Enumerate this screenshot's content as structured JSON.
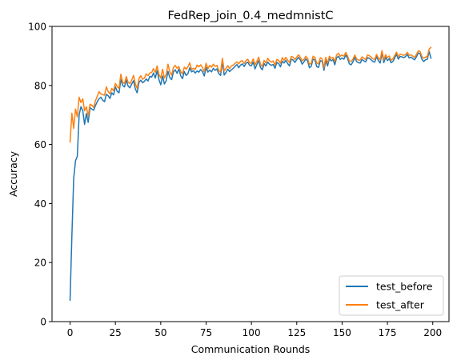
{
  "chart_data": {
    "type": "line",
    "title": "FedRep_join_0.4_medmnistC",
    "xlabel": "Communication Rounds",
    "ylabel": "Accuracy",
    "xlim": [
      -9.95,
      208.95
    ],
    "ylim": [
      0,
      100
    ],
    "xticks": [
      0,
      25,
      50,
      75,
      100,
      125,
      150,
      175,
      200
    ],
    "yticks": [
      0,
      20,
      40,
      60,
      80,
      100
    ],
    "grid": false,
    "legend_position": "lower right",
    "series": [
      {
        "name": "test_before",
        "color": "#1f77b4",
        "values": [
          7.2,
          29.0,
          48.5,
          54.5,
          56.0,
          70.0,
          72.8,
          71.5,
          66.8,
          70.5,
          67.5,
          72.5,
          72.0,
          71.6,
          73.2,
          74.5,
          75.5,
          76.0,
          75.0,
          74.5,
          77.0,
          76.5,
          75.6,
          77.5,
          76.8,
          79.5,
          78.0,
          77.5,
          82.0,
          80.0,
          79.5,
          81.8,
          79.8,
          79.2,
          80.5,
          81.6,
          78.8,
          77.5,
          81.0,
          81.8,
          80.9,
          81.4,
          82.2,
          81.5,
          83.1,
          82.8,
          84.2,
          82.5,
          85.0,
          82.0,
          80.2,
          83.2,
          80.5,
          81.6,
          84.8,
          82.6,
          82.0,
          84.6,
          85.3,
          84.1,
          85.6,
          83.3,
          82.3,
          84.7,
          83.4,
          84.0,
          86.0,
          84.6,
          85.0,
          84.2,
          84.9,
          84.5,
          85.4,
          84.7,
          83.2,
          86.1,
          84.5,
          85.2,
          84.6,
          85.8,
          85.1,
          85.6,
          84.0,
          83.4,
          88.0,
          83.5,
          84.4,
          85.5,
          84.7,
          85.3,
          85.8,
          86.5,
          87.1,
          86.0,
          86.9,
          87.3,
          86.4,
          87.5,
          87.9,
          86.8,
          86.7,
          87.9,
          85.6,
          87.1,
          88.4,
          86.1,
          85.3,
          87.4,
          86.6,
          87.9,
          87.2,
          86.8,
          87.1,
          85.8,
          87.8,
          87.4,
          86.3,
          88.2,
          87.6,
          88.5,
          87.4,
          86.6,
          88.9,
          88.6,
          87.8,
          88.8,
          89.5,
          88.6,
          87.2,
          88.0,
          89.0,
          88.2,
          86.0,
          86.5,
          89.0,
          88.6,
          86.4,
          86.1,
          88.4,
          88.2,
          85.1,
          88.4,
          86.6,
          89.1,
          88.3,
          88.8,
          87.0,
          89.4,
          89.9,
          88.8,
          89.3,
          88.9,
          90.3,
          89.2,
          87.3,
          87.0,
          88.0,
          89.5,
          88.1,
          87.7,
          87.6,
          88.8,
          88.3,
          88.0,
          89.4,
          89.2,
          88.7,
          88.1,
          87.9,
          89.8,
          88.4,
          87.6,
          91.1,
          87.7,
          89.6,
          88.4,
          89.1,
          87.7,
          88.1,
          89.3,
          90.6,
          88.9,
          89.8,
          89.7,
          89.4,
          89.8,
          90.5,
          89.3,
          89.6,
          89.1,
          88.7,
          89.7,
          91.0,
          90.8,
          88.9,
          88.1,
          88.7,
          88.9,
          91.5,
          89.2
        ]
      },
      {
        "name": "test_after",
        "color": "#ff7f0e",
        "values": [
          60.8,
          70.6,
          65.4,
          72.0,
          69.4,
          76.0,
          74.2,
          75.5,
          71.4,
          72.8,
          69.7,
          73.6,
          73.3,
          72.6,
          74.8,
          76.3,
          77.9,
          77.1,
          76.9,
          76.7,
          79.5,
          78.0,
          77.1,
          79.0,
          78.2,
          80.7,
          79.6,
          79.0,
          83.8,
          81.1,
          80.6,
          83.0,
          81.1,
          80.6,
          81.8,
          83.4,
          80.5,
          79.0,
          82.3,
          83.3,
          82.1,
          82.5,
          83.9,
          83.3,
          84.2,
          84.4,
          85.7,
          84.4,
          86.6,
          83.7,
          82.5,
          85.5,
          82.5,
          83.8,
          87.2,
          84.6,
          83.5,
          86.1,
          86.8,
          85.8,
          86.4,
          84.7,
          83.9,
          86.2,
          85.5,
          86.3,
          87.7,
          85.4,
          85.8,
          85.4,
          86.9,
          86.3,
          87.0,
          86.1,
          84.6,
          87.5,
          85.6,
          86.8,
          86.2,
          87.2,
          86.5,
          86.8,
          85.0,
          84.5,
          89.2,
          84.9,
          85.8,
          86.7,
          85.7,
          86.6,
          86.9,
          87.5,
          88.0,
          87.3,
          88.2,
          88.4,
          87.4,
          88.4,
          88.9,
          87.7,
          87.5,
          89.0,
          87.0,
          88.2,
          89.6,
          87.2,
          86.4,
          88.5,
          87.6,
          89.2,
          88.3,
          87.9,
          88.3,
          86.9,
          88.8,
          88.5,
          87.5,
          89.4,
          88.5,
          89.5,
          88.5,
          87.8,
          89.8,
          89.6,
          88.8,
          89.6,
          90.4,
          89.5,
          88.3,
          88.9,
          89.9,
          89.1,
          87.1,
          87.6,
          89.9,
          89.5,
          87.6,
          87.3,
          89.4,
          89.0,
          86.0,
          89.5,
          87.6,
          89.9,
          89.2,
          89.5,
          88.1,
          90.4,
          90.9,
          89.9,
          90.3,
          89.9,
          91.2,
          90.0,
          88.3,
          88.1,
          88.9,
          90.3,
          89.0,
          88.6,
          88.6,
          89.7,
          89.2,
          88.8,
          90.3,
          90.1,
          89.6,
          89.0,
          88.8,
          90.5,
          89.3,
          88.7,
          91.8,
          88.6,
          90.4,
          89.4,
          90.0,
          88.5,
          89.0,
          90.1,
          91.3,
          89.7,
          90.6,
          90.4,
          90.2,
          90.5,
          91.2,
          90.2,
          90.4,
          89.9,
          89.5,
          90.5,
          91.7,
          91.5,
          89.8,
          89.2,
          89.6,
          89.8,
          92.3,
          92.9
        ]
      }
    ]
  }
}
